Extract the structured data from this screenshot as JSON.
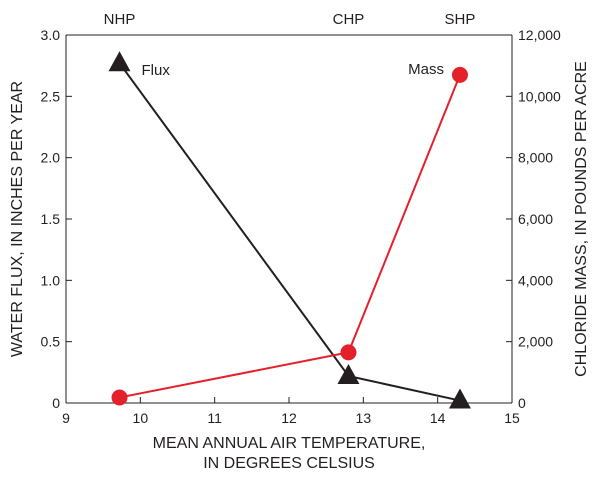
{
  "chart_data": {
    "type": "line",
    "xlabel": [
      "MEAN ANNUAL AIR TEMPERATURE,",
      "IN DEGREES CELSIUS"
    ],
    "ylabel": "WATER FLUX,  IN INCHES PER YEAR",
    "y2label": "CHLORIDE MASS, IN POUNDS PER ACRE",
    "xlim": [
      9,
      15
    ],
    "ylim": [
      0,
      3.0
    ],
    "y2lim": [
      0,
      12000
    ],
    "xticks": [
      "9",
      "10",
      "11",
      "12",
      "13",
      "14",
      "15"
    ],
    "yticks": [
      "0",
      "0.5",
      "1.0",
      "1.5",
      "2.0",
      "2.5",
      "3.0"
    ],
    "y2ticks": [
      "0",
      "2,000",
      "4,000",
      "6,000",
      "8,000",
      "10,000",
      "12,000"
    ],
    "grid": false,
    "sites": [
      {
        "label": "NHP",
        "x": 9.72
      },
      {
        "label": "CHP",
        "x": 12.8
      },
      {
        "label": "SHP",
        "x": 14.3
      }
    ],
    "series": [
      {
        "name": "Flux",
        "axis": "left",
        "color": "#231f20",
        "marker": "triangle",
        "x": [
          9.72,
          12.8,
          14.3
        ],
        "values": [
          2.77,
          0.22,
          0.02
        ]
      },
      {
        "name": "Mass",
        "axis": "right",
        "color": "#e4202b",
        "marker": "circle",
        "x": [
          9.72,
          12.8,
          14.3
        ],
        "values": [
          180,
          1650,
          10700
        ]
      }
    ]
  }
}
